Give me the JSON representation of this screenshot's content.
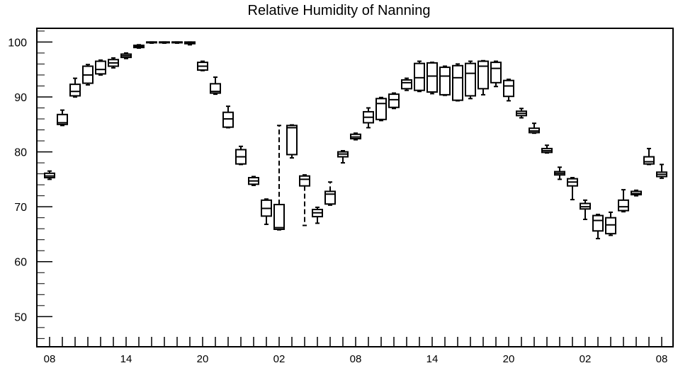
{
  "chart_data": {
    "type": "box",
    "title": "Relative Humidity of Nanning",
    "xlabel": "",
    "ylabel": "",
    "ylim": [
      44.5,
      102.5
    ],
    "yticks": [
      50,
      60,
      70,
      80,
      90,
      100
    ],
    "xticks": [
      {
        "i": 0,
        "label": "08"
      },
      {
        "i": 6,
        "label": "14"
      },
      {
        "i": 12,
        "label": "20"
      },
      {
        "i": 18,
        "label": "02"
      },
      {
        "i": 24,
        "label": "08"
      },
      {
        "i": 30,
        "label": "14"
      },
      {
        "i": 36,
        "label": "20"
      },
      {
        "i": 42,
        "label": "02"
      },
      {
        "i": 48,
        "label": "08"
      }
    ],
    "grid": false,
    "boxes": [
      {
        "i": 0,
        "min": 75.0,
        "q1": 75.3,
        "median": 75.6,
        "q3": 76.1,
        "max": 76.5
      },
      {
        "i": 1,
        "min": 84.8,
        "q1": 85.0,
        "median": 85.3,
        "q3": 86.8,
        "max": 87.6
      },
      {
        "i": 2,
        "min": 90.0,
        "q1": 90.2,
        "median": 91.0,
        "q3": 92.3,
        "max": 93.4
      },
      {
        "i": 3,
        "min": 92.2,
        "q1": 92.5,
        "median": 94.0,
        "q3": 95.6,
        "max": 95.9
      },
      {
        "i": 4,
        "min": 94.0,
        "q1": 94.2,
        "median": 95.0,
        "q3": 96.5,
        "max": 96.7
      },
      {
        "i": 5,
        "min": 95.3,
        "q1": 95.6,
        "median": 96.2,
        "q3": 96.8,
        "max": 97.1
      },
      {
        "i": 6,
        "min": 97.0,
        "q1": 97.2,
        "median": 97.5,
        "q3": 97.8,
        "max": 98.0
      },
      {
        "i": 7,
        "min": 98.9,
        "q1": 99.0,
        "median": 99.2,
        "q3": 99.4,
        "max": 99.5
      },
      {
        "i": 8,
        "min": 99.8,
        "q1": 99.9,
        "median": 100.0,
        "q3": 100.0,
        "max": 100.0
      },
      {
        "i": 9,
        "min": 99.8,
        "q1": 99.9,
        "median": 100.0,
        "q3": 100.0,
        "max": 100.0
      },
      {
        "i": 10,
        "min": 99.8,
        "q1": 99.9,
        "median": 100.0,
        "q3": 100.0,
        "max": 100.0
      },
      {
        "i": 11,
        "min": 99.5,
        "q1": 99.7,
        "median": 99.9,
        "q3": 100.0,
        "max": 100.0
      },
      {
        "i": 12,
        "min": 94.8,
        "q1": 94.9,
        "median": 95.6,
        "q3": 96.3,
        "max": 96.5
      },
      {
        "i": 13,
        "min": 90.5,
        "q1": 90.7,
        "median": 91.0,
        "q3": 92.4,
        "max": 93.6
      },
      {
        "i": 14,
        "min": 84.4,
        "q1": 84.5,
        "median": 86.0,
        "q3": 87.2,
        "max": 88.3
      },
      {
        "i": 15,
        "min": 77.7,
        "q1": 77.8,
        "median": 79.1,
        "q3": 80.4,
        "max": 81.0
      },
      {
        "i": 16,
        "min": 73.9,
        "q1": 74.1,
        "median": 74.7,
        "q3": 75.3,
        "max": 75.5
      },
      {
        "i": 17,
        "min": 66.8,
        "q1": 68.3,
        "median": 69.7,
        "q3": 71.2,
        "max": 71.4
      },
      {
        "i": 18,
        "min": 65.8,
        "q1": 65.9,
        "median": 66.2,
        "q3": 70.4,
        "max": 84.8
      },
      {
        "i": 19,
        "min": 78.9,
        "q1": 79.5,
        "median": 84.4,
        "q3": 84.8,
        "max": 84.9
      },
      {
        "i": 20,
        "min": 66.6,
        "q1": 73.8,
        "median": 75.0,
        "q3": 75.6,
        "max": 75.8
      },
      {
        "i": 21,
        "min": 67.0,
        "q1": 68.2,
        "median": 68.9,
        "q3": 69.5,
        "max": 69.9
      },
      {
        "i": 22,
        "min": 70.3,
        "q1": 70.5,
        "median": 72.3,
        "q3": 72.8,
        "max": 74.5
      },
      {
        "i": 23,
        "min": 78.0,
        "q1": 79.1,
        "median": 79.6,
        "q3": 80.0,
        "max": 80.2
      },
      {
        "i": 24,
        "min": 82.2,
        "q1": 82.4,
        "median": 82.7,
        "q3": 83.2,
        "max": 83.4
      },
      {
        "i": 25,
        "min": 84.4,
        "q1": 85.3,
        "median": 86.3,
        "q3": 87.3,
        "max": 88.0
      },
      {
        "i": 26,
        "min": 85.7,
        "q1": 85.9,
        "median": 88.8,
        "q3": 89.7,
        "max": 89.9
      },
      {
        "i": 27,
        "min": 87.9,
        "q1": 88.1,
        "median": 89.5,
        "q3": 90.5,
        "max": 90.7
      },
      {
        "i": 28,
        "min": 91.2,
        "q1": 91.5,
        "median": 92.6,
        "q3": 93.1,
        "max": 93.4
      },
      {
        "i": 29,
        "min": 91.0,
        "q1": 91.2,
        "median": 93.5,
        "q3": 96.1,
        "max": 96.5
      },
      {
        "i": 30,
        "min": 90.6,
        "q1": 90.9,
        "median": 93.8,
        "q3": 96.2,
        "max": 96.3
      },
      {
        "i": 31,
        "min": 90.3,
        "q1": 90.4,
        "median": 93.8,
        "q3": 95.4,
        "max": 95.6
      },
      {
        "i": 32,
        "min": 89.3,
        "q1": 89.4,
        "median": 93.5,
        "q3": 95.7,
        "max": 96.0
      },
      {
        "i": 33,
        "min": 89.7,
        "q1": 90.2,
        "median": 94.3,
        "q3": 96.1,
        "max": 96.5
      },
      {
        "i": 34,
        "min": 90.4,
        "q1": 91.5,
        "median": 95.6,
        "q3": 96.5,
        "max": 96.6
      },
      {
        "i": 35,
        "min": 91.9,
        "q1": 92.6,
        "median": 95.2,
        "q3": 96.3,
        "max": 96.5
      },
      {
        "i": 36,
        "min": 89.3,
        "q1": 90.1,
        "median": 92.0,
        "q3": 93.0,
        "max": 93.2
      },
      {
        "i": 37,
        "min": 86.2,
        "q1": 86.6,
        "median": 87.0,
        "q3": 87.4,
        "max": 87.9
      },
      {
        "i": 38,
        "min": 83.4,
        "q1": 83.5,
        "median": 83.8,
        "q3": 84.3,
        "max": 85.2
      },
      {
        "i": 39,
        "min": 79.8,
        "q1": 79.9,
        "median": 80.2,
        "q3": 80.6,
        "max": 81.2
      },
      {
        "i": 40,
        "min": 75.0,
        "q1": 75.8,
        "median": 76.1,
        "q3": 76.4,
        "max": 77.2
      },
      {
        "i": 41,
        "min": 71.3,
        "q1": 73.8,
        "median": 74.5,
        "q3": 75.1,
        "max": 75.3
      },
      {
        "i": 42,
        "min": 67.7,
        "q1": 69.6,
        "median": 70.0,
        "q3": 70.6,
        "max": 71.2
      },
      {
        "i": 43,
        "min": 64.2,
        "q1": 65.6,
        "median": 67.5,
        "q3": 68.4,
        "max": 68.6
      },
      {
        "i": 44,
        "min": 64.8,
        "q1": 65.1,
        "median": 66.7,
        "q3": 68.0,
        "max": 69.0
      },
      {
        "i": 45,
        "min": 69.1,
        "q1": 69.3,
        "median": 70.0,
        "q3": 71.2,
        "max": 73.1
      },
      {
        "i": 46,
        "min": 72.0,
        "q1": 72.2,
        "median": 72.4,
        "q3": 72.8,
        "max": 73.0
      },
      {
        "i": 47,
        "min": 77.7,
        "q1": 77.8,
        "median": 78.2,
        "q3": 79.1,
        "max": 80.6
      },
      {
        "i": 48,
        "min": 75.2,
        "q1": 75.5,
        "median": 75.9,
        "q3": 76.3,
        "max": 77.7
      }
    ],
    "dashed_boxes": [
      18,
      19,
      20,
      22
    ]
  }
}
